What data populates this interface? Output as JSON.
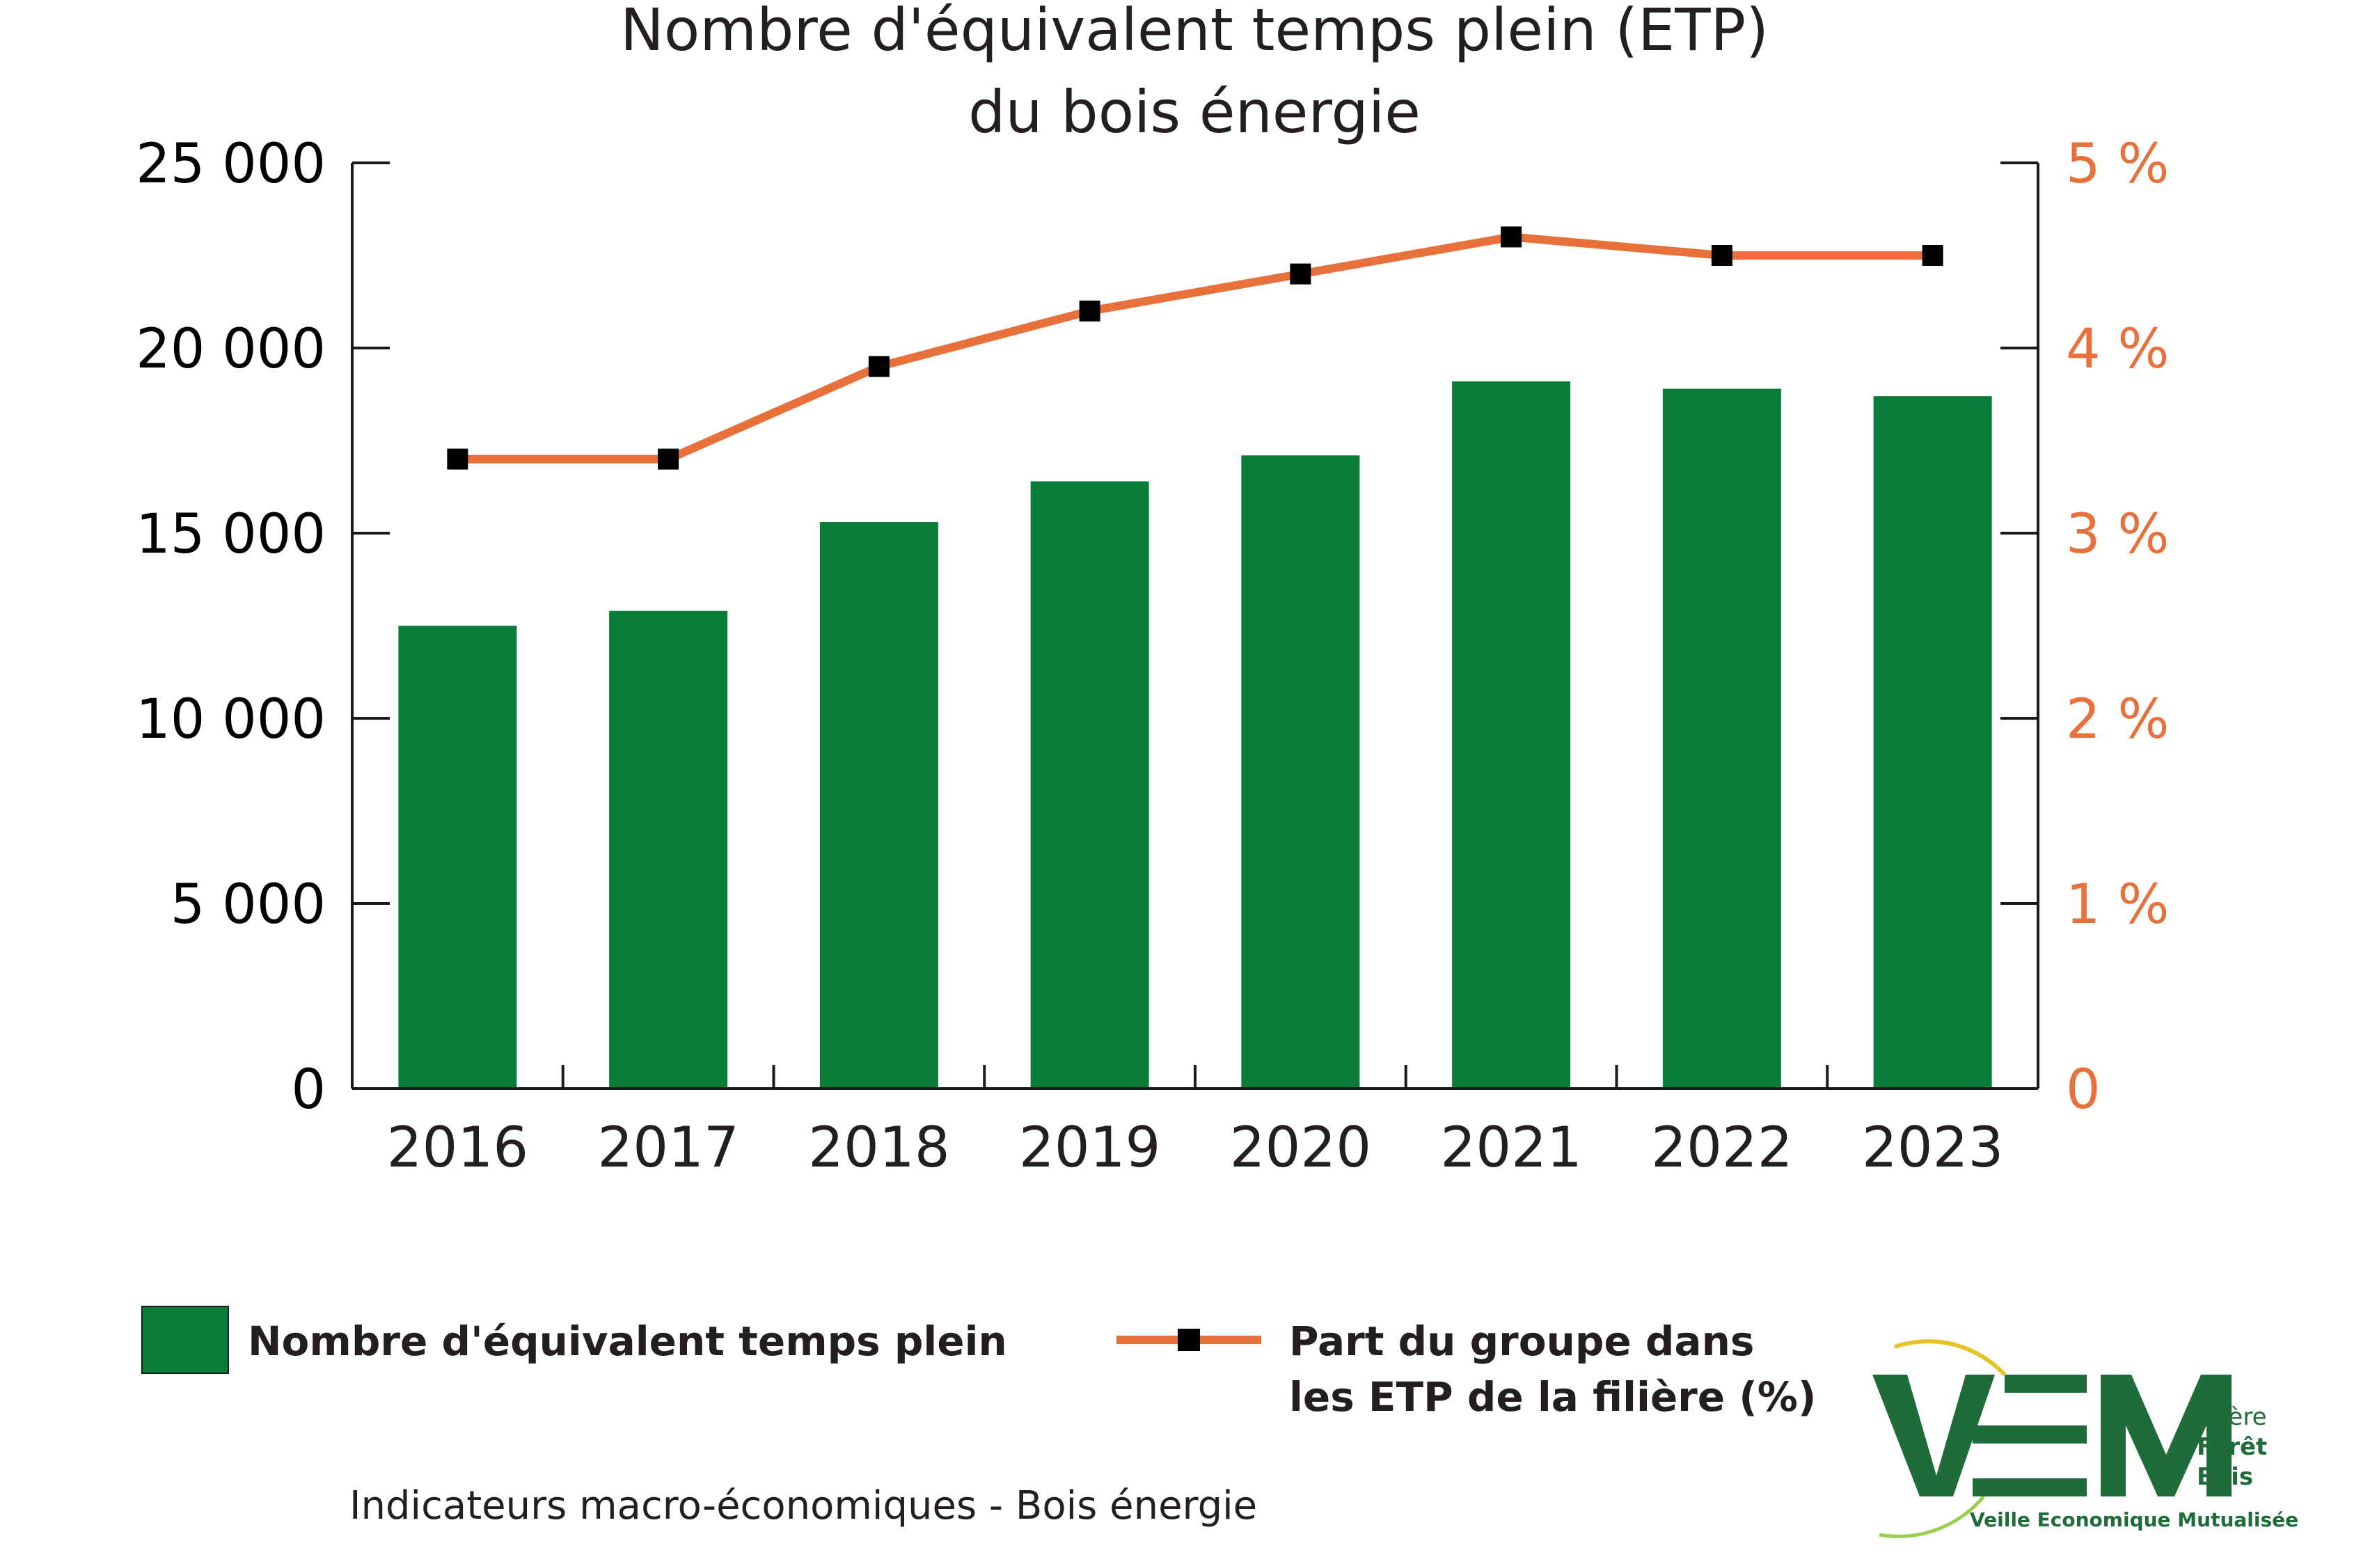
{
  "chart_data": {
    "type": "bar",
    "title_lines": [
      "Nombre d'équivalent temps plein (ETP)",
      "du bois énergie"
    ],
    "categories": [
      "2016",
      "2017",
      "2018",
      "2019",
      "2020",
      "2021",
      "2022",
      "2023"
    ],
    "series": [
      {
        "name": "Nombre d'équivalent temps plein",
        "type": "bar",
        "axis": "left",
        "color": "#077d39",
        "values": [
          12500,
          12900,
          15300,
          16400,
          17100,
          19100,
          18900,
          18700
        ]
      },
      {
        "name": "Part du groupe dans les ETP de la filière (%)",
        "type": "line",
        "axis": "right",
        "color": "#e8703a",
        "marker_color": "#000000",
        "values": [
          3.4,
          3.4,
          3.9,
          4.2,
          4.4,
          4.6,
          4.5,
          4.5
        ]
      }
    ],
    "y_left": {
      "ylim": [
        0,
        25000
      ],
      "ticks": [
        0,
        5000,
        10000,
        15000,
        20000,
        25000
      ],
      "tick_labels": [
        "0",
        "5 000",
        "10 000",
        "15 000",
        "20 000",
        "25 000"
      ]
    },
    "y_right": {
      "ylim": [
        0,
        5
      ],
      "ticks": [
        0,
        1,
        2,
        3,
        4,
        5
      ],
      "tick_labels": [
        "0",
        "1 %",
        "2 %",
        "3 %",
        "4 %",
        "5 %"
      ]
    },
    "legend": {
      "placement": "bottom",
      "items": [
        {
          "label_lines": [
            "Nombre d'équivalent temps plein"
          ],
          "swatch": "bar"
        },
        {
          "label_lines": [
            "Part du groupe dans",
            "les ETP de la filière  (%)"
          ],
          "swatch": "line"
        }
      ]
    },
    "grid": false
  },
  "footer": {
    "caption": "Indicateurs macro-économiques - Bois énergie"
  },
  "logo": {
    "mark": "VEM",
    "word_1": "Filière",
    "word_2": "Forêt",
    "word_3": "Bois",
    "tagline": "Veille Economique Mutualisée"
  },
  "colors": {
    "bar": "#077d39",
    "line": "#e8703a",
    "text": "#231f20",
    "logo": "#1f6b3a",
    "logo_accent": "#e6c229"
  }
}
